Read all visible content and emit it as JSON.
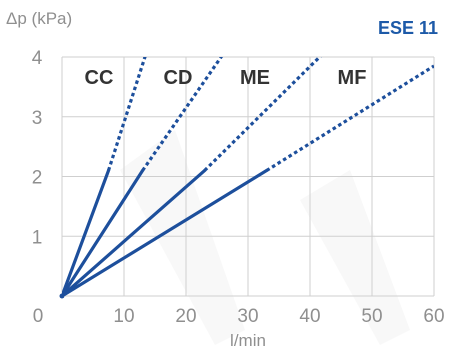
{
  "chart_data": {
    "type": "line",
    "title": "ESE 11",
    "ylabel": "Δp (kPa)",
    "xlabel": "l/min",
    "xlim": [
      0,
      60
    ],
    "ylim": [
      0,
      4
    ],
    "x_ticks": [
      "0",
      "10",
      "20",
      "30",
      "40",
      "50",
      "60"
    ],
    "y_ticks": [
      "0",
      "1",
      "2",
      "3",
      "4"
    ],
    "grid": true,
    "series": [
      {
        "name": "CC",
        "solid": [
          [
            0,
            0
          ],
          [
            7.5,
            2.1
          ]
        ],
        "dashed": [
          [
            7.5,
            2.1
          ],
          [
            14,
            4.2
          ]
        ]
      },
      {
        "name": "CD",
        "solid": [
          [
            0,
            0
          ],
          [
            13,
            2.1
          ]
        ],
        "dashed": [
          [
            13,
            2.1
          ],
          [
            27,
            4.2
          ]
        ]
      },
      {
        "name": "ME",
        "solid": [
          [
            0,
            0
          ],
          [
            23,
            2.1
          ]
        ],
        "dashed": [
          [
            23,
            2.1
          ],
          [
            43.5,
            4.2
          ]
        ]
      },
      {
        "name": "MF",
        "solid": [
          [
            0,
            0
          ],
          [
            33,
            2.1
          ]
        ],
        "dashed": [
          [
            33,
            2.1
          ],
          [
            60,
            3.85
          ]
        ]
      }
    ],
    "colors": {
      "line": "#1d4f9c",
      "title": "#1d5aa8",
      "grid": "#cfcfcf",
      "tick": "#8f8f8f"
    }
  }
}
